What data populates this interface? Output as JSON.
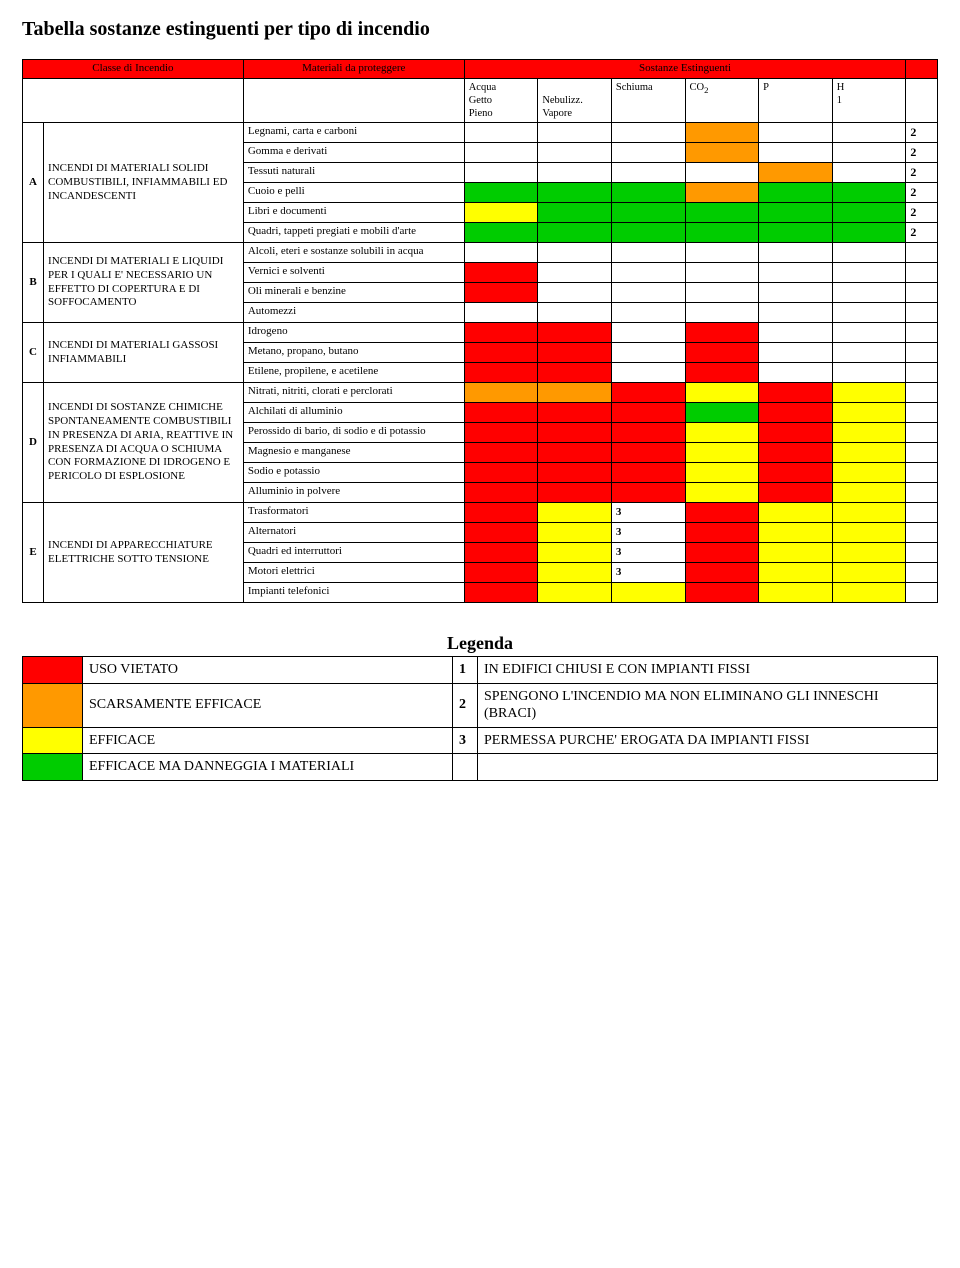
{
  "title": "Tabella sostanze estinguenti per tipo di incendio",
  "colors": {
    "red": "#ff0000",
    "yellow": "#ffff00",
    "orange": "#ff9900",
    "green": "#00cc00",
    "white": "#ffffff"
  },
  "header": {
    "col1": "Classe di Incendio",
    "col2": "Materiali da proteggere",
    "col3": "Sostanze Estinguenti",
    "sub": {
      "acqua_getto": "Acqua\nGetto\nPieno",
      "acqua_neb": "\nNebulizz.\nVapore",
      "schiuma": "Schiuma",
      "co2": "CO",
      "co2_sub": "2",
      "p": "P",
      "h": "H\n1"
    }
  },
  "classA": {
    "letter": "A",
    "desc": "INCENDI DI MATERIALI SOLIDI COMBUSTIBILI, INFIAMMABILI ED INCANDESCENTI",
    "rows": [
      {
        "m": "Legnami, carta e carboni",
        "c": [
          "white",
          "white",
          "white",
          "orange",
          "white",
          "white"
        ],
        "n": "2"
      },
      {
        "m": "Gomma e derivati",
        "c": [
          "white",
          "white",
          "white",
          "orange",
          "white",
          "white"
        ],
        "n": "2"
      },
      {
        "m": "Tessuti naturali",
        "c": [
          "white",
          "white",
          "white",
          "white",
          "orange",
          "white"
        ],
        "n": "2"
      },
      {
        "m": "Cuoio e pelli",
        "c": [
          "green",
          "green",
          "green",
          "orange",
          "green",
          "green"
        ],
        "n": "2"
      },
      {
        "m": "Libri e documenti",
        "c": [
          "yellow",
          "green",
          "green",
          "green",
          "green",
          "green"
        ],
        "n": "2"
      },
      {
        "m": "Quadri, tappeti pregiati e mobili d'arte",
        "c": [
          "green",
          "green",
          "green",
          "green",
          "green",
          "green"
        ],
        "n": "2"
      }
    ]
  },
  "classB": {
    "letter": "B",
    "desc": "INCENDI DI MATERIALI E LIQUIDI PER I QUALI E' NECESSARIO UN EFFETTO DI COPERTURA E DI SOFFOCAMENTO",
    "rows": [
      {
        "m": "Alcoli, eteri e sostanze solubili in acqua",
        "c": [
          "white",
          "white",
          "white",
          "white",
          "white",
          "white"
        ],
        "n": ""
      },
      {
        "m": "Vernici e solventi",
        "c": [
          "red",
          "white",
          "white",
          "white",
          "white",
          "white"
        ],
        "n": ""
      },
      {
        "m": "Oli minerali e benzine",
        "c": [
          "red",
          "white",
          "white",
          "white",
          "white",
          "white"
        ],
        "n": ""
      },
      {
        "m": "Automezzi",
        "c": [
          "white",
          "white",
          "white",
          "white",
          "white",
          "white"
        ],
        "n": ""
      }
    ]
  },
  "classC": {
    "letter": "C",
    "desc": "INCENDI DI MATERIALI GASSOSI INFIAMMABILI",
    "rows": [
      {
        "m": "Idrogeno",
        "c": [
          "red",
          "red",
          "white",
          "red",
          "white",
          "white"
        ],
        "n": ""
      },
      {
        "m": "Metano, propano, butano",
        "c": [
          "red",
          "red",
          "white",
          "red",
          "white",
          "white"
        ],
        "n": ""
      },
      {
        "m": "Etilene, propilene, e acetilene",
        "c": [
          "red",
          "red",
          "white",
          "red",
          "white",
          "white"
        ],
        "n": ""
      }
    ]
  },
  "classD": {
    "letter": "D",
    "desc": "INCENDI DI SOSTANZE CHIMICHE SPONTANEAMENTE COMBUSTIBILI IN PRESENZA DI ARIA, REATTIVE IN PRESENZA DI ACQUA O SCHIUMA CON FORMAZIONE DI IDROGENO E PERICOLO DI ESPLOSIONE",
    "rows": [
      {
        "m": "Nitrati, nitriti, clorati e perclorati",
        "c": [
          "orange",
          "orange",
          "red",
          "yellow",
          "red",
          "yellow"
        ],
        "n": ""
      },
      {
        "m": "Alchilati di alluminio",
        "c": [
          "red",
          "red",
          "red",
          "green",
          "red",
          "yellow"
        ],
        "n": ""
      },
      {
        "m": "Perossido di bario, di sodio e di potassio",
        "c": [
          "red",
          "red",
          "red",
          "yellow",
          "red",
          "yellow"
        ],
        "n": ""
      },
      {
        "m": "Magnesio e manganese",
        "c": [
          "red",
          "red",
          "red",
          "yellow",
          "red",
          "yellow"
        ],
        "n": ""
      },
      {
        "m": "Sodio e potassio",
        "c": [
          "red",
          "red",
          "red",
          "yellow",
          "red",
          "yellow"
        ],
        "n": ""
      },
      {
        "m": "Alluminio in polvere",
        "c": [
          "red",
          "red",
          "red",
          "yellow",
          "red",
          "yellow"
        ],
        "n": ""
      }
    ]
  },
  "classE": {
    "letter": "E",
    "desc": "INCENDI DI APPARECCHIATURE ELETTRICHE SOTTO TENSIONE",
    "rows": [
      {
        "m": "Trasformatori",
        "c": [
          "red",
          "yellow",
          "3",
          "red",
          "yellow",
          "yellow"
        ],
        "n": "",
        "val3": "3"
      },
      {
        "m": "Alternatori",
        "c": [
          "red",
          "yellow",
          "3",
          "red",
          "yellow",
          "yellow"
        ],
        "n": "",
        "val3": "3"
      },
      {
        "m": "Quadri ed interruttori",
        "c": [
          "red",
          "yellow",
          "3",
          "red",
          "yellow",
          "yellow"
        ],
        "n": "",
        "val3": "3"
      },
      {
        "m": "Motori elettrici",
        "c": [
          "red",
          "yellow",
          "3",
          "red",
          "yellow",
          "yellow"
        ],
        "n": "",
        "val3": "3"
      },
      {
        "m": "Impianti telefonici",
        "c": [
          "red",
          "yellow",
          "yellow",
          "red",
          "yellow",
          "yellow"
        ],
        "n": ""
      }
    ]
  },
  "legend": {
    "title": "Legenda",
    "rows": [
      {
        "color": "red",
        "label": "USO VIETATO",
        "num": "1",
        "desc": "IN EDIFICI CHIUSI E CON IMPIANTI FISSI"
      },
      {
        "color": "orange",
        "label": "SCARSAMENTE EFFICACE",
        "num": "2",
        "desc": "SPENGONO L'INCENDIO MA NON  ELIMINANO GLI INNESCHI  (BRACI)"
      },
      {
        "color": "yellow",
        "label": "EFFICACE",
        "num": "3",
        "desc": "PERMESSA PURCHE' EROGATA DA IMPIANTI FISSI"
      },
      {
        "color": "green",
        "label": "EFFICACE MA DANNEGGIA I MATERIALI",
        "num": "",
        "desc": ""
      }
    ]
  }
}
